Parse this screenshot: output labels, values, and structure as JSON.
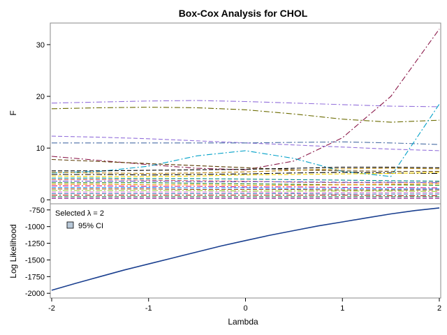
{
  "chart_data": {
    "title": "Box-Cox Analysis for CHOL",
    "xlabel": "Lambda",
    "x_ticks": [
      "-2",
      "-1",
      "0",
      "1",
      "2"
    ],
    "xlim": [
      -2,
      2
    ],
    "panels": [
      {
        "type": "line",
        "ylabel": "F",
        "ylim": [
          -0.5,
          33.5
        ],
        "y_ticks": [
          "0",
          "10",
          "20",
          "30"
        ],
        "y_tick_values": [
          0,
          10,
          20,
          30
        ],
        "x": [
          -2,
          -1.5,
          -1,
          -0.5,
          0,
          0.5,
          1,
          1.5,
          2
        ],
        "series": [
          {
            "color": "#9370db",
            "values": [
              18.7,
              18.9,
              19.1,
              19.2,
              19.0,
              18.7,
              18.4,
              18.1,
              18.0
            ],
            "style": "dashdot"
          },
          {
            "color": "#6b6b00",
            "values": [
              17.6,
              17.8,
              17.9,
              17.8,
              17.4,
              16.6,
              15.6,
              15.0,
              15.4
            ],
            "style": "dashdot"
          },
          {
            "color": "#9370db",
            "values": [
              12.3,
              12.1,
              11.8,
              11.4,
              11.0,
              10.6,
              10.2,
              9.8,
              9.5
            ],
            "style": "dashed"
          },
          {
            "color": "#4a6fa5",
            "values": [
              11.0,
              11.0,
              11.0,
              11.0,
              11.0,
              11.1,
              11.2,
              11.0,
              10.7
            ],
            "style": "dashdot"
          },
          {
            "color": "#8b1a4a",
            "values": [
              8.4,
              7.6,
              6.8,
              6.1,
              5.8,
              7.5,
              12.0,
              20.0,
              33.0
            ],
            "style": "dashdot"
          },
          {
            "color": "#00a0c8",
            "values": [
              5.2,
              5.5,
              6.5,
              8.5,
              9.5,
              8.0,
              5.5,
              4.5,
              18.5
            ],
            "style": "dashdot"
          },
          {
            "color": "#5a3a00",
            "values": [
              7.8,
              7.4,
              7.0,
              6.6,
              6.2,
              5.8,
              5.6,
              5.5,
              5.5
            ],
            "style": "dashed"
          },
          {
            "color": "#000000",
            "values": [
              5.6,
              5.6,
              5.7,
              5.8,
              5.9,
              6.1,
              6.3,
              6.3,
              6.2
            ],
            "style": "dashed"
          },
          {
            "color": "#b8860b",
            "values": [
              5.3,
              5.2,
              5.1,
              5.2,
              5.4,
              5.7,
              6.0,
              6.1,
              6.0
            ],
            "style": "dashed"
          },
          {
            "color": "#000000",
            "values": [
              4.9,
              4.9,
              4.8,
              4.9,
              5.0,
              5.2,
              5.3,
              5.2,
              5.1
            ],
            "style": "dashdot"
          },
          {
            "color": "#ffd700",
            "values": [
              4.6,
              4.5,
              4.5,
              4.6,
              4.8,
              4.9,
              5.0,
              5.1,
              5.3
            ],
            "style": "dashed"
          },
          {
            "color": "#008b8b",
            "values": [
              4.2,
              4.2,
              4.1,
              4.1,
              4.0,
              3.9,
              3.8,
              3.7,
              3.6
            ],
            "style": "dashed"
          },
          {
            "color": "#cd5c5c",
            "values": [
              3.9,
              3.9,
              3.8,
              3.7,
              3.6,
              3.4,
              3.3,
              3.3,
              3.4
            ],
            "style": "dashed"
          },
          {
            "color": "#6a5acd",
            "values": [
              3.6,
              3.6,
              3.6,
              3.5,
              3.5,
              3.5,
              3.4,
              3.4,
              3.3
            ],
            "style": "dashdot"
          },
          {
            "color": "#228b22",
            "values": [
              3.3,
              3.3,
              3.3,
              3.2,
              3.1,
              3.0,
              2.9,
              2.9,
              2.8
            ],
            "style": "dashed"
          },
          {
            "color": "#ff8c00",
            "values": [
              3.0,
              3.0,
              2.9,
              2.9,
              2.8,
              2.8,
              2.9,
              3.0,
              3.1
            ],
            "style": "dashed"
          },
          {
            "color": "#c71585",
            "values": [
              2.7,
              2.7,
              2.6,
              2.6,
              2.5,
              2.5,
              2.4,
              2.4,
              2.3
            ],
            "style": "dashdot"
          },
          {
            "color": "#1e90ff",
            "values": [
              2.4,
              2.4,
              2.4,
              2.3,
              2.3,
              2.2,
              2.2,
              2.1,
              2.1
            ],
            "style": "dashed"
          },
          {
            "color": "#8b4513",
            "values": [
              2.1,
              2.1,
              2.1,
              2.0,
              2.0,
              2.0,
              1.9,
              1.9,
              1.9
            ],
            "style": "dashed"
          },
          {
            "color": "#9acd32",
            "values": [
              1.8,
              1.8,
              1.8,
              1.8,
              1.7,
              1.7,
              1.7,
              1.7,
              1.6
            ],
            "style": "dashdot"
          },
          {
            "color": "#da70d6",
            "values": [
              1.5,
              1.5,
              1.5,
              1.5,
              1.5,
              1.4,
              1.4,
              1.4,
              1.4
            ],
            "style": "dashed"
          },
          {
            "color": "#4682b4",
            "values": [
              1.2,
              1.2,
              1.2,
              1.2,
              1.2,
              1.2,
              1.1,
              1.1,
              1.1
            ],
            "style": "dashed"
          },
          {
            "color": "#b22222",
            "values": [
              0.9,
              0.9,
              0.9,
              0.9,
              0.9,
              0.9,
              0.9,
              0.8,
              0.8
            ],
            "style": "dashdot"
          },
          {
            "color": "#2e8b57",
            "values": [
              0.6,
              0.6,
              0.6,
              0.6,
              0.6,
              0.6,
              0.6,
              0.6,
              0.6
            ],
            "style": "dashed"
          },
          {
            "color": "#800080",
            "values": [
              0.3,
              0.3,
              0.3,
              0.3,
              0.3,
              0.3,
              0.3,
              0.3,
              0.3
            ],
            "style": "dashed"
          }
        ]
      },
      {
        "type": "line",
        "ylabel": "Log Likelihood",
        "ylim": [
          -2050,
          -700
        ],
        "y_ticks": [
          "-750",
          "-1000",
          "-1250",
          "-1500",
          "-1750",
          "-2000"
        ],
        "y_tick_values": [
          -750,
          -1000,
          -1250,
          -1500,
          -1750,
          -2000
        ],
        "x": [
          -2,
          -1.75,
          -1.5,
          -1.25,
          -1,
          -0.75,
          -0.5,
          -0.25,
          0,
          0.25,
          0.5,
          0.75,
          1,
          1.25,
          1.5,
          1.75,
          2
        ],
        "series": [
          {
            "color": "#1a3f8f",
            "values": [
              -1955,
              -1850,
              -1750,
              -1650,
              -1560,
              -1470,
              -1380,
              -1290,
              -1210,
              -1130,
              -1060,
              -990,
              -930,
              -870,
              -810,
              -760,
              -720
            ],
            "style": "solid"
          }
        ],
        "legend": {
          "selected_text": "Selected λ = 2",
          "ci_label": "95% CI",
          "ci_color": "#b8c8d8"
        }
      }
    ]
  }
}
